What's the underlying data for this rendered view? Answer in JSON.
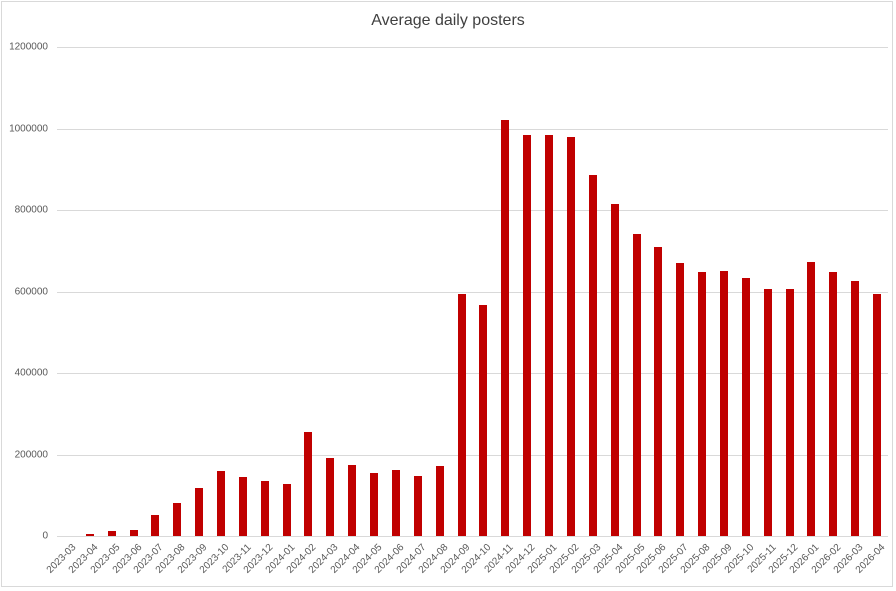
{
  "chart_data": {
    "type": "bar",
    "title": "Average daily posters",
    "xlabel": "",
    "ylabel": "",
    "ylim": [
      0,
      1200000
    ],
    "yticks": [
      0,
      200000,
      400000,
      600000,
      800000,
      1000000,
      1200000
    ],
    "ytick_labels": [
      "0",
      "200000",
      "400000",
      "600000",
      "800000",
      "1000000",
      "1200000"
    ],
    "grid": true,
    "legend": null,
    "bar_color": "#C00000",
    "categories": [
      "2023-03",
      "2023-04",
      "2023-05",
      "2023-06",
      "2023-07",
      "2023-08",
      "2023-09",
      "2023-10",
      "2023-11",
      "2023-12",
      "2024-01",
      "2024-02",
      "2024-03",
      "2024-04",
      "2024-05",
      "2024-06",
      "2024-07",
      "2024-08",
      "2024-09",
      "2024-10",
      "2024-11",
      "2024-12",
      "2025-01",
      "2025-02",
      "2025-03",
      "2025-04",
      "2025-05",
      "2025-06",
      "2025-07",
      "2025-08",
      "2025-09",
      "2025-10",
      "2025-11",
      "2025-12",
      "2026-01",
      "2026-02",
      "2026-03",
      "2026-04"
    ],
    "values": [
      0,
      5000,
      12000,
      15000,
      52000,
      81000,
      118000,
      159000,
      145000,
      135000,
      128000,
      255000,
      192000,
      174000,
      155000,
      162000,
      147000,
      172000,
      593000,
      568000,
      1022000,
      983000,
      985000,
      980000,
      887000,
      814000,
      742000,
      708000,
      670000,
      647000,
      650000,
      632000,
      606000,
      606000,
      672000,
      649000,
      626000,
      593000
    ]
  }
}
